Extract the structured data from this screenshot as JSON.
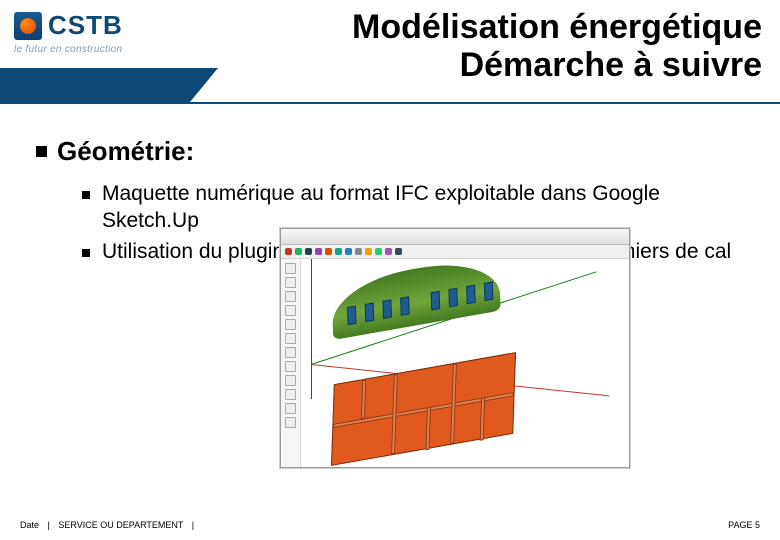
{
  "brand": {
    "name": "CSTB",
    "tagline": "le futur en construction",
    "colors": {
      "primary": "#0e4876",
      "accent_orange": "#e67300"
    }
  },
  "title_line1": "Modélisation énergétique",
  "title_line2": "Démarche à suivre",
  "heading": "Géométrie:",
  "bullets": [
    "Maquette numérique au format IFC exploitable dans Google Sketch.Up",
    "Utilisation du plugin Open.Studio pour la création des fichiers de cal"
  ],
  "screenshot": {
    "app_hint": "SketchUp / OpenStudio",
    "toolbar_icon_colors": [
      "#c0392b",
      "#27ae60",
      "#2c3e50",
      "#8e44ad",
      "#d35400",
      "#16a085",
      "#2980b9",
      "#7f8c8d",
      "#f39c12",
      "#2ecc71",
      "#9b59b6",
      "#34495e"
    ],
    "roof_color": "#5c8f2d",
    "roof_window_color": "#1f5d8f",
    "plan_color": "#e05a1f",
    "axis_colors": {
      "x": "#c0392b",
      "y": "#1948a0",
      "z": "#1a7f1a"
    }
  },
  "footer": {
    "date_label": "Date",
    "service_label": "SERVICE OU DEPARTEMENT",
    "page_label": "PAGE",
    "page_number": "5"
  }
}
